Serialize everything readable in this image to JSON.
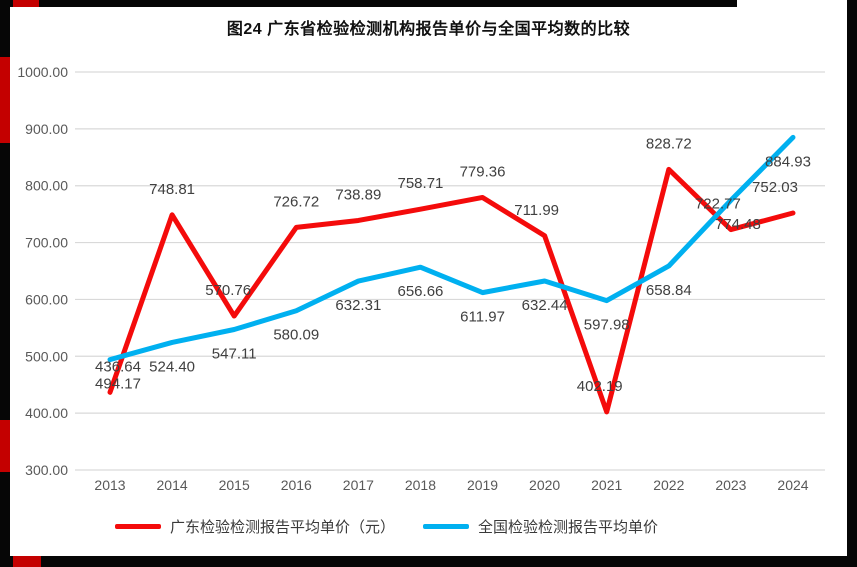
{
  "page": {
    "background": "#ffffff",
    "frame_color": "#060606",
    "frame_accent_color": "#c40000"
  },
  "title": "图24  广东省检验检测机构报告单价与全国平均数的比较",
  "chart_data": {
    "type": "line",
    "title": "图24  广东省检验检测机构报告单价与全国平均数的比较",
    "categories": [
      "2013",
      "2014",
      "2015",
      "2016",
      "2017",
      "2018",
      "2019",
      "2020",
      "2021",
      "2022",
      "2023",
      "2024"
    ],
    "series": [
      {
        "name": "广东检验检测报告平均单价（元）",
        "color": "#f40b0b",
        "values": [
          436.64,
          748.81,
          570.76,
          726.72,
          738.89,
          758.71,
          779.36,
          711.99,
          402.19,
          828.72,
          722.77,
          752.03
        ]
      },
      {
        "name": "全国检验检测报告平均单价",
        "color": "#00b0f0",
        "values": [
          494.17,
          524.4,
          547.11,
          580.09,
          632.31,
          656.66,
          611.97,
          632.44,
          597.98,
          658.84,
          774.48,
          884.93
        ]
      }
    ],
    "ylim": [
      300,
      1000
    ],
    "ytick_labels": [
      "300.00",
      "400.00",
      "500.00",
      "600.00",
      "700.00",
      "800.00",
      "900.00",
      "1000.00"
    ],
    "grid": true,
    "data_labels": true,
    "legend_position": "bottom",
    "gridline_color": "#d9d9d9",
    "axis_label_color": "#595959",
    "data_label_color": "#404040"
  },
  "legend": {
    "items": [
      {
        "label": "广东检验检测报告平均单价（元）",
        "color": "#f40b0b"
      },
      {
        "label": "全国检验检测报告平均单价",
        "color": "#00b0f0"
      }
    ]
  }
}
